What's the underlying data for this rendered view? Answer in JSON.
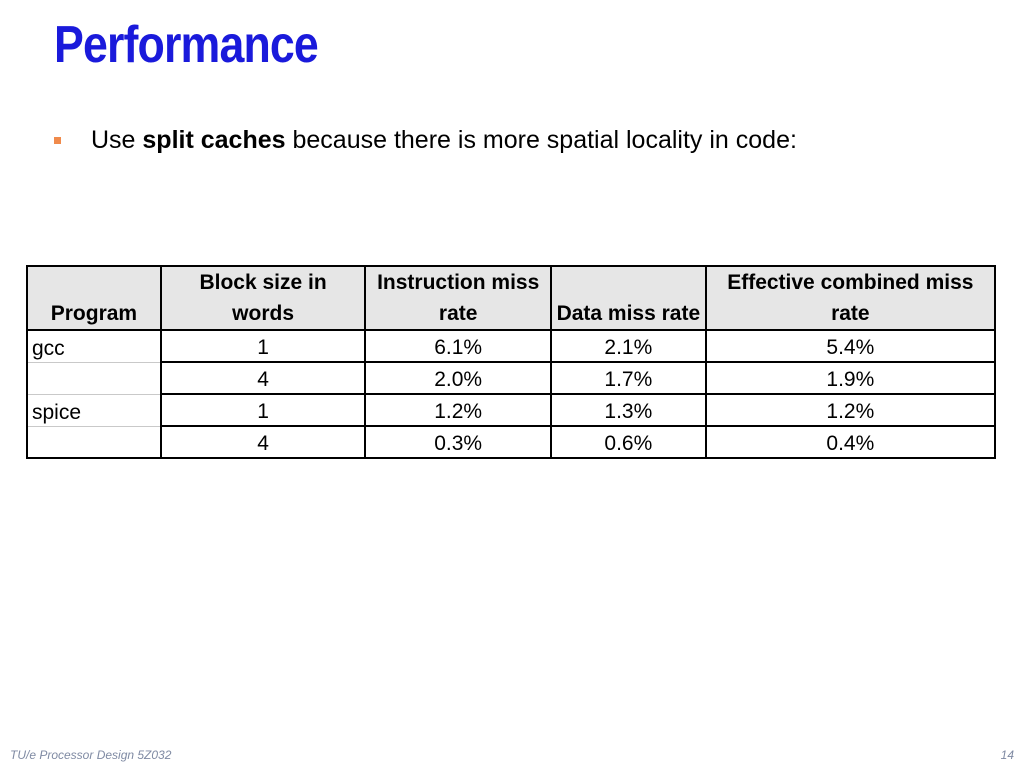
{
  "slide": {
    "title": "Performance",
    "bullet": {
      "prefix": "Use ",
      "bold": "split caches",
      "suffix": " because there is more spatial locality in code:"
    },
    "colors": {
      "title": "#1a1adb",
      "bullet": "#f08a4b",
      "header_bg": "#e6e6e6",
      "footer": "#7f8aa3"
    }
  },
  "table": {
    "headers": [
      "Program",
      "Block size in words",
      "Instruction miss rate",
      "Data miss rate",
      "Effective combined miss rate"
    ],
    "rows": [
      {
        "program": "gcc",
        "block_size": "1",
        "instruction_miss": "6.1%",
        "data_miss": "2.1%",
        "combined_miss": "5.4%"
      },
      {
        "program": "",
        "block_size": "4",
        "instruction_miss": "2.0%",
        "data_miss": "1.7%",
        "combined_miss": "1.9%"
      },
      {
        "program": "spice",
        "block_size": "1",
        "instruction_miss": "1.2%",
        "data_miss": "1.3%",
        "combined_miss": "1.2%"
      },
      {
        "program": "",
        "block_size": "4",
        "instruction_miss": "0.3%",
        "data_miss": "0.6%",
        "combined_miss": "0.4%"
      }
    ]
  },
  "footer": {
    "course": "TU/e Processor Design 5Z032",
    "page_number": "14"
  }
}
